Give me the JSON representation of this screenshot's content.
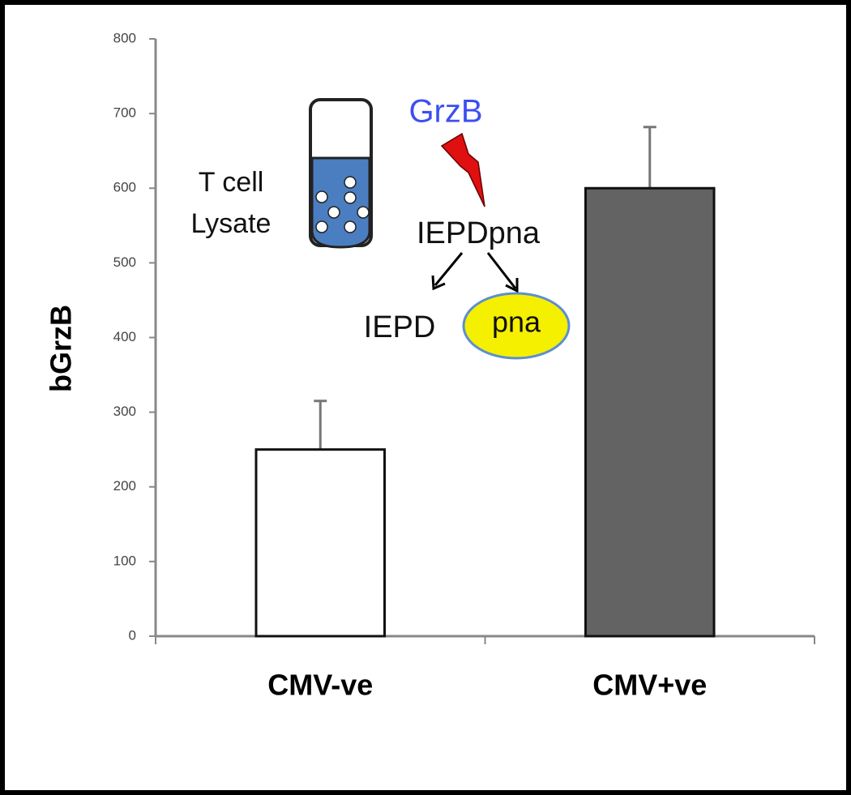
{
  "chart_data": {
    "type": "bar",
    "y_label": "bGrzB",
    "categories": [
      "CMV-ve",
      "CMV+ve"
    ],
    "values": [
      250,
      600
    ],
    "errors": [
      65,
      82
    ],
    "colors": [
      "#ffffff",
      "#636363"
    ],
    "ylim": [
      0,
      800
    ],
    "yticks": [
      0,
      100,
      200,
      300,
      400,
      500,
      600,
      700,
      800
    ],
    "grid": false,
    "annotations": [
      "T cell",
      "Lysate",
      "GrzB",
      "IEPDpna",
      "IEPD",
      "pna"
    ]
  }
}
